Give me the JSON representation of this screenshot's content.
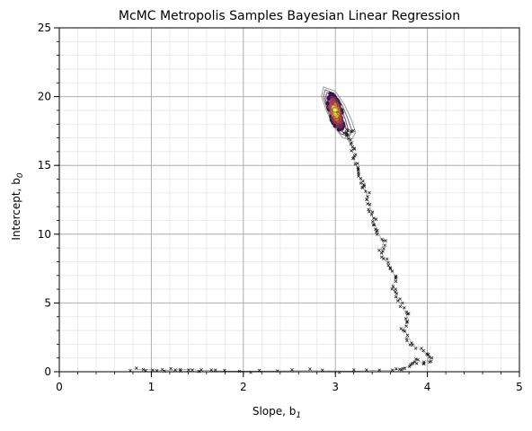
{
  "chart_data": {
    "type": "scatter",
    "title": "McMC Metropolis Samples Bayesian Linear Regression",
    "xlabel": "Slope, b",
    "xlabel_sub": "1",
    "ylabel": "Intercept, b",
    "ylabel_sub": "0",
    "xlim": [
      0,
      5
    ],
    "ylim": [
      0,
      25
    ],
    "x_ticks": [
      0,
      1,
      2,
      3,
      4,
      5
    ],
    "x_tick_labels": [
      "0",
      "1",
      "2",
      "3",
      "4",
      "5"
    ],
    "y_ticks": [
      0,
      5,
      10,
      15,
      20,
      25
    ],
    "y_tick_labels": [
      "0",
      "5",
      "10",
      "15",
      "20",
      "25"
    ],
    "x_minor_step": 0.2,
    "y_minor_step": 1,
    "grid": true,
    "burn_in_trace": [
      [
        0.8,
        0.2
      ],
      [
        0.95,
        0.15
      ],
      [
        1.1,
        0.1
      ],
      [
        1.25,
        0.12
      ],
      [
        1.38,
        0.18
      ],
      [
        1.55,
        0.1
      ],
      [
        1.8,
        0.05
      ],
      [
        2.2,
        0.05
      ],
      [
        2.7,
        0.08
      ],
      [
        3.2,
        0.05
      ],
      [
        3.63,
        0.12
      ],
      [
        3.7,
        0.18
      ],
      [
        3.78,
        0.35
      ],
      [
        3.85,
        0.6
      ],
      [
        3.9,
        0.9
      ],
      [
        3.95,
        0.5
      ],
      [
        4.0,
        0.8
      ],
      [
        4.05,
        1.0
      ],
      [
        3.98,
        1.3
      ],
      [
        3.88,
        1.8
      ],
      [
        3.82,
        2.2
      ],
      [
        3.78,
        2.7
      ],
      [
        3.74,
        3.2
      ],
      [
        3.8,
        3.7
      ],
      [
        3.76,
        4.3
      ],
      [
        3.72,
        4.8
      ],
      [
        3.68,
        5.3
      ],
      [
        3.64,
        5.8
      ],
      [
        3.62,
        6.3
      ],
      [
        3.66,
        6.9
      ],
      [
        3.6,
        7.4
      ],
      [
        3.56,
        7.9
      ],
      [
        3.52,
        8.4
      ],
      [
        3.5,
        8.9
      ],
      [
        3.52,
        9.4
      ],
      [
        3.48,
        9.9
      ],
      [
        3.45,
        10.4
      ],
      [
        3.42,
        10.9
      ],
      [
        3.4,
        11.4
      ],
      [
        3.38,
        11.9
      ],
      [
        3.36,
        12.4
      ],
      [
        3.34,
        12.9
      ],
      [
        3.32,
        13.4
      ],
      [
        3.28,
        13.8
      ],
      [
        3.26,
        14.2
      ],
      [
        3.24,
        14.7
      ],
      [
        3.22,
        15.1
      ],
      [
        3.2,
        15.6
      ],
      [
        3.19,
        16.0
      ],
      [
        3.18,
        16.4
      ],
      [
        3.14,
        16.8
      ],
      [
        3.12,
        17.2
      ],
      [
        3.1,
        17.5
      ],
      [
        3.2,
        17.4
      ],
      [
        3.08,
        17.9
      ]
    ],
    "posterior_contours": [
      [
        [
          2.87,
          20.7
        ],
        [
          3.0,
          20.4
        ],
        [
          3.1,
          19.4
        ],
        [
          3.17,
          18.4
        ],
        [
          3.22,
          17.4
        ],
        [
          3.18,
          16.9
        ],
        [
          3.08,
          17.0
        ],
        [
          2.99,
          17.8
        ],
        [
          2.9,
          19.0
        ],
        [
          2.85,
          20.0
        ]
      ],
      [
        [
          2.89,
          20.5
        ],
        [
          2.99,
          20.2
        ],
        [
          3.08,
          19.3
        ],
        [
          3.14,
          18.3
        ],
        [
          3.18,
          17.5
        ],
        [
          3.15,
          17.1
        ],
        [
          3.06,
          17.3
        ],
        [
          2.98,
          18.0
        ],
        [
          2.91,
          19.1
        ],
        [
          2.87,
          20.0
        ]
      ],
      [
        [
          2.91,
          20.3
        ],
        [
          2.99,
          20.0
        ],
        [
          3.06,
          19.2
        ],
        [
          3.11,
          18.3
        ],
        [
          3.14,
          17.6
        ],
        [
          3.11,
          17.3
        ],
        [
          3.04,
          17.6
        ],
        [
          2.97,
          18.3
        ],
        [
          2.92,
          19.2
        ],
        [
          2.89,
          19.9
        ]
      ],
      [
        [
          2.93,
          20.0
        ],
        [
          2.99,
          19.8
        ],
        [
          3.04,
          19.1
        ],
        [
          3.08,
          18.3
        ],
        [
          3.1,
          17.8
        ],
        [
          3.07,
          17.6
        ],
        [
          3.02,
          17.9
        ],
        [
          2.97,
          18.5
        ],
        [
          2.93,
          19.3
        ],
        [
          2.91,
          19.8
        ]
      ]
    ],
    "posterior_center": [
      3.0,
      18.9
    ],
    "density_colors": [
      "#3b0f4f",
      "#7a2a6b",
      "#c13f5a",
      "#e86f3a",
      "#f6b63a",
      "#f2f24a"
    ]
  }
}
